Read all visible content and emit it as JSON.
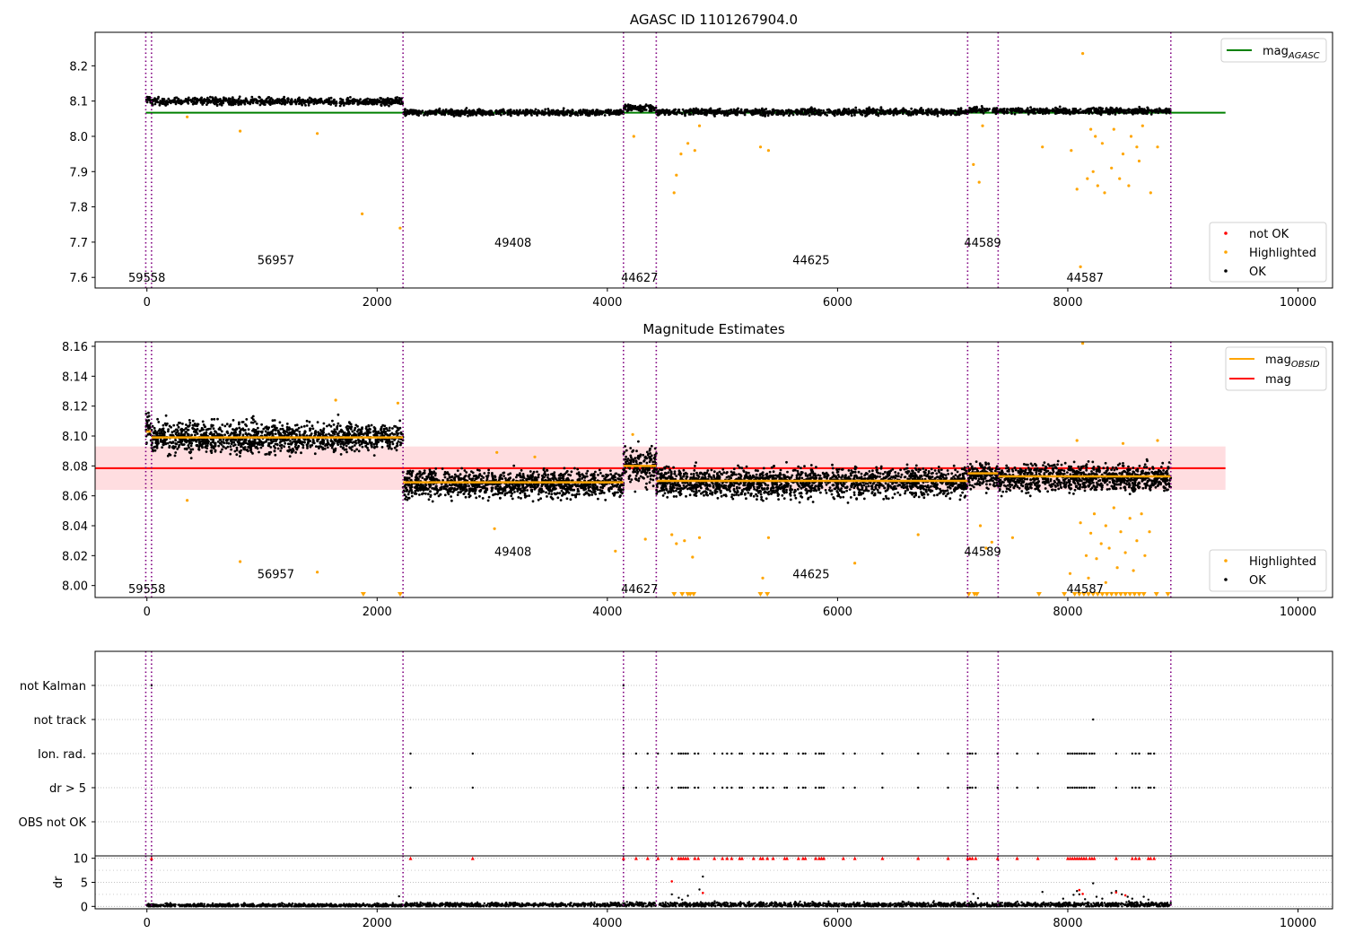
{
  "colors": {
    "ok": "#000000",
    "highlighted": "#ffa500",
    "not_ok": "#ff0000",
    "agasc_line": "#008000",
    "obsid_line": "#ffa500",
    "mag_line": "#ff0000",
    "mag_band": "#ffdde0",
    "obs_boundary": "#800080",
    "grid": "#b0b0b0"
  },
  "chart_data": [
    {
      "id": "agasc",
      "type": "scatter",
      "title": "AGASC ID 1101267904.0",
      "xlabel": "",
      "ylabel": "",
      "xlim": [
        -450,
        10300
      ],
      "ylim": [
        7.57,
        8.295
      ],
      "xticks": [
        0,
        2000,
        4000,
        6000,
        8000,
        10000
      ],
      "xtick_labels": [
        "0",
        "2000",
        "4000",
        "6000",
        "8000",
        "10000"
      ],
      "yticks": [
        7.6,
        7.7,
        7.8,
        7.9,
        8.0,
        8.1,
        8.2
      ],
      "ytick_labels": [
        "7.6",
        "7.7",
        "7.8",
        "7.9",
        "8.0",
        "8.1",
        "8.2"
      ],
      "obs_boundaries": [
        -10,
        40,
        2225,
        4140,
        4425,
        7130,
        7395,
        8895
      ],
      "obsid_labels": [
        {
          "text": "59558",
          "x": 0,
          "y": 7.6
        },
        {
          "text": "56957",
          "x": 1120,
          "y": 7.65
        },
        {
          "text": "49408",
          "x": 3180,
          "y": 7.7
        },
        {
          "text": "44627",
          "x": 4280,
          "y": 7.6
        },
        {
          "text": "44625",
          "x": 5770,
          "y": 7.65
        },
        {
          "text": "44589",
          "x": 7260,
          "y": 7.7
        },
        {
          "text": "44587",
          "x": 8150,
          "y": 7.6
        }
      ],
      "lines": [
        {
          "name": "mag_AGASC",
          "x": [
            -10,
            9370
          ],
          "y": [
            8.067,
            8.067
          ],
          "color": "#008000"
        }
      ],
      "segments": [
        {
          "x0": -10,
          "x1": 40,
          "mean": 8.105,
          "spread": 0.012,
          "dense": 1
        },
        {
          "x0": 40,
          "x1": 2225,
          "mean": 8.099,
          "spread": 0.011,
          "dense": 1
        },
        {
          "x0": 2225,
          "x1": 4140,
          "mean": 8.068,
          "spread": 0.009,
          "dense": 1
        },
        {
          "x0": 4140,
          "x1": 4425,
          "mean": 8.08,
          "spread": 0.011,
          "dense": 1
        },
        {
          "x0": 4425,
          "x1": 7130,
          "mean": 8.069,
          "spread": 0.01,
          "dense": 1
        },
        {
          "x0": 7130,
          "x1": 7395,
          "mean": 8.074,
          "spread": 0.01,
          "dense": 1
        },
        {
          "x0": 7395,
          "x1": 8895,
          "mean": 8.072,
          "spread": 0.009,
          "dense": 1
        }
      ],
      "highlighted_points": [
        [
          350,
          8.055
        ],
        [
          810,
          8.015
        ],
        [
          1480,
          8.008
        ],
        [
          1870,
          7.78
        ],
        [
          2200,
          7.74
        ],
        [
          4580,
          7.84
        ],
        [
          4600,
          7.89
        ],
        [
          4640,
          7.95
        ],
        [
          4700,
          7.98
        ],
        [
          4760,
          7.96
        ],
        [
          4800,
          8.03
        ],
        [
          5330,
          7.97
        ],
        [
          5400,
          7.96
        ],
        [
          7180,
          7.92
        ],
        [
          7230,
          7.87
        ],
        [
          7260,
          8.03
        ],
        [
          7780,
          7.97
        ],
        [
          8030,
          7.96
        ],
        [
          8080,
          7.85
        ],
        [
          8110,
          7.63
        ],
        [
          8130,
          8.235
        ],
        [
          8170,
          7.88
        ],
        [
          8220,
          7.9
        ],
        [
          8260,
          7.86
        ],
        [
          8320,
          7.84
        ],
        [
          8380,
          7.91
        ],
        [
          8450,
          7.88
        ],
        [
          8530,
          7.86
        ],
        [
          8620,
          7.93
        ],
        [
          8720,
          7.84
        ],
        [
          8780,
          7.97
        ],
        [
          4230,
          8.0
        ],
        [
          8200,
          8.02
        ],
        [
          8240,
          8.0
        ],
        [
          8300,
          7.98
        ],
        [
          8400,
          8.02
        ],
        [
          8480,
          7.95
        ],
        [
          8550,
          8.0
        ],
        [
          8600,
          7.97
        ],
        [
          8650,
          8.03
        ]
      ],
      "legend_upper": [
        {
          "label": "mag",
          "sub": "AGASC",
          "color": "#008000"
        }
      ],
      "legend_lower": [
        {
          "label": "not OK",
          "color": "#ff0000"
        },
        {
          "label": "Highlighted",
          "color": "#ffa500"
        },
        {
          "label": "OK",
          "color": "#000000"
        }
      ]
    },
    {
      "id": "estimates",
      "type": "scatter",
      "title": "Magnitude Estimates",
      "xlabel": "",
      "ylabel": "",
      "xlim": [
        -450,
        10300
      ],
      "ylim": [
        7.992,
        8.163
      ],
      "xticks": [
        0,
        2000,
        4000,
        6000,
        8000,
        10000
      ],
      "xtick_labels": [
        "0",
        "2000",
        "4000",
        "6000",
        "8000",
        "10000"
      ],
      "yticks": [
        8.0,
        8.02,
        8.04,
        8.06,
        8.08,
        8.1,
        8.12,
        8.14,
        8.16
      ],
      "ytick_labels": [
        "8.00",
        "8.02",
        "8.04",
        "8.06",
        "8.08",
        "8.10",
        "8.12",
        "8.14",
        "8.16"
      ],
      "obs_boundaries": [
        -10,
        40,
        2225,
        4140,
        4425,
        7130,
        7395,
        8895
      ],
      "obsid_labels": [
        {
          "text": "59558",
          "x": 0,
          "y": 7.998
        },
        {
          "text": "56957",
          "x": 1120,
          "y": 8.008
        },
        {
          "text": "49408",
          "x": 3180,
          "y": 8.023
        },
        {
          "text": "44627",
          "x": 4280,
          "y": 7.998
        },
        {
          "text": "44625",
          "x": 5770,
          "y": 8.008
        },
        {
          "text": "44589",
          "x": 7260,
          "y": 8.023
        },
        {
          "text": "44587",
          "x": 8150,
          "y": 7.998
        }
      ],
      "band": {
        "x0": -450,
        "x1": 9370,
        "y0": 8.064,
        "y1": 8.093
      },
      "lines": [
        {
          "name": "mag",
          "x": [
            -450,
            9370
          ],
          "y": [
            8.0785,
            8.0785
          ],
          "color": "#ff0000"
        }
      ],
      "obsid_means": [
        {
          "x0": -10,
          "x1": 40,
          "y": 8.103
        },
        {
          "x0": 40,
          "x1": 2225,
          "y": 8.099
        },
        {
          "x0": 2225,
          "x1": 4140,
          "y": 8.069
        },
        {
          "x0": 4140,
          "x1": 4425,
          "y": 8.08
        },
        {
          "x0": 4425,
          "x1": 7130,
          "y": 8.07
        },
        {
          "x0": 7130,
          "x1": 7395,
          "y": 8.075
        },
        {
          "x0": 7395,
          "x1": 8895,
          "y": 8.073
        }
      ],
      "segments": [
        {
          "x0": -10,
          "x1": 40,
          "mean": 8.105,
          "spread": 0.006
        },
        {
          "x0": 40,
          "x1": 2225,
          "mean": 8.099,
          "spread": 0.005
        },
        {
          "x0": 2225,
          "x1": 4140,
          "mean": 8.068,
          "spread": 0.0045
        },
        {
          "x0": 4140,
          "x1": 4425,
          "mean": 8.08,
          "spread": 0.006
        },
        {
          "x0": 4425,
          "x1": 7130,
          "mean": 8.069,
          "spread": 0.005
        },
        {
          "x0": 7130,
          "x1": 7395,
          "mean": 8.074,
          "spread": 0.004
        },
        {
          "x0": 7395,
          "x1": 8895,
          "mean": 8.072,
          "spread": 0.0045
        }
      ],
      "highlighted_points": [
        [
          350,
          8.057
        ],
        [
          810,
          8.016
        ],
        [
          1480,
          8.009
        ],
        [
          1640,
          8.124
        ],
        [
          2180,
          8.122
        ],
        [
          3020,
          8.038
        ],
        [
          3040,
          8.089
        ],
        [
          3370,
          8.086
        ],
        [
          4070,
          8.023
        ],
        [
          4220,
          8.101
        ],
        [
          4330,
          8.031
        ],
        [
          4560,
          8.034
        ],
        [
          4600,
          8.028
        ],
        [
          4670,
          8.03
        ],
        [
          4740,
          8.019
        ],
        [
          4800,
          8.032
        ],
        [
          5350,
          8.005
        ],
        [
          5400,
          8.032
        ],
        [
          6150,
          8.015
        ],
        [
          6700,
          8.034
        ],
        [
          7240,
          8.04
        ],
        [
          7290,
          8.025
        ],
        [
          7340,
          8.029
        ],
        [
          7520,
          8.032
        ],
        [
          8020,
          8.008
        ],
        [
          8080,
          8.097
        ],
        [
          8130,
          8.162
        ],
        [
          8110,
          8.042
        ],
        [
          8160,
          8.02
        ],
        [
          8200,
          8.035
        ],
        [
          8230,
          8.048
        ],
        [
          8250,
          8.018
        ],
        [
          8290,
          8.028
        ],
        [
          8330,
          8.04
        ],
        [
          8360,
          8.025
        ],
        [
          8400,
          8.052
        ],
        [
          8430,
          8.012
        ],
        [
          8460,
          8.036
        ],
        [
          8500,
          8.022
        ],
        [
          8540,
          8.045
        ],
        [
          8570,
          8.01
        ],
        [
          8600,
          8.03
        ],
        [
          8640,
          8.048
        ],
        [
          8670,
          8.02
        ],
        [
          8710,
          8.036
        ],
        [
          8480,
          8.095
        ],
        [
          8780,
          8.097
        ],
        [
          8180,
          8.005
        ],
        [
          8330,
          8.002
        ]
      ],
      "clipped_points_x": [
        1880,
        2200,
        4580,
        4650,
        4700,
        4720,
        4750,
        5330,
        5390,
        7140,
        7190,
        7210,
        7750,
        7970,
        8060,
        8100,
        8140,
        8180,
        8220,
        8260,
        8300,
        8340,
        8380,
        8420,
        8460,
        8500,
        8540,
        8580,
        8620,
        8660,
        8770,
        8870
      ],
      "legend_upper": [
        {
          "label": "mag",
          "sub": "OBSID",
          "color": "#ffa500"
        },
        {
          "label": "mag",
          "sub": "",
          "color": "#ff0000"
        }
      ],
      "legend_lower": [
        {
          "label": "Highlighted",
          "color": "#ffa500"
        },
        {
          "label": "OK",
          "color": "#000000"
        }
      ]
    },
    {
      "id": "flags",
      "type": "scatter",
      "title": "",
      "xlabel": "",
      "ylabel": "",
      "xlim": [
        -450,
        10300
      ],
      "categories": [
        "not Kalman",
        "not track",
        "Ion. rad.",
        "dr > 5",
        "OBS not OK"
      ],
      "obs_boundaries": [
        -10,
        40,
        2225,
        4140,
        4425,
        7130,
        7395,
        8895
      ],
      "rows": {
        "not Kalman": [
          40,
          4140
        ],
        "not track": [
          8220
        ],
        "Ion. rad.": [
          2290,
          2830,
          4140,
          4250,
          4350,
          4440,
          4560,
          4620,
          4640,
          4660,
          4680,
          4700,
          4760,
          4790,
          4930,
          5000,
          5040,
          5080,
          5150,
          5170,
          5270,
          5330,
          5350,
          5390,
          5440,
          5540,
          5560,
          5660,
          5700,
          5720,
          5810,
          5840,
          5860,
          5880,
          6050,
          6150,
          6390,
          6700,
          6960,
          7130,
          7150,
          7170,
          7200,
          7390,
          7560,
          7740,
          8000,
          8020,
          8040,
          8060,
          8080,
          8100,
          8120,
          8140,
          8160,
          8190,
          8210,
          8230,
          8420,
          8560,
          8590,
          8620,
          8700,
          8720,
          8750
        ],
        "dr > 5": [
          2290,
          2830,
          4140,
          4250,
          4350,
          4440,
          4560,
          4620,
          4640,
          4660,
          4680,
          4700,
          4760,
          4790,
          4930,
          5000,
          5040,
          5080,
          5150,
          5170,
          5270,
          5330,
          5350,
          5390,
          5440,
          5540,
          5560,
          5660,
          5700,
          5720,
          5810,
          5840,
          5860,
          5880,
          6050,
          6150,
          6390,
          6700,
          6960,
          7130,
          7150,
          7170,
          7200,
          7390,
          7560,
          7740,
          8000,
          8020,
          8040,
          8060,
          8080,
          8100,
          8120,
          8140,
          8160,
          8190,
          8210,
          8230,
          8420,
          8560,
          8590,
          8620,
          8700,
          8720,
          8750
        ],
        "OBS not OK": []
      }
    },
    {
      "id": "dr",
      "type": "scatter",
      "title": "",
      "xlabel": "",
      "ylabel": "dr",
      "xlim": [
        -450,
        10300
      ],
      "ylim": [
        -0.5,
        10.5
      ],
      "xticks": [
        0,
        2000,
        4000,
        6000,
        8000,
        10000
      ],
      "xtick_labels": [
        "0",
        "2000",
        "4000",
        "6000",
        "8000",
        "10000"
      ],
      "yticks": [
        0,
        5,
        10
      ],
      "ytick_labels": [
        "0",
        "5",
        "10"
      ],
      "obs_boundaries": [
        -10,
        40,
        2225,
        4140,
        4425,
        7130,
        7395,
        8895
      ],
      "segments": [
        {
          "x0": -10,
          "x1": 2225,
          "mean": 0.2,
          "spread": 0.18
        },
        {
          "x0": 2225,
          "x1": 4140,
          "mean": 0.35,
          "spread": 0.22
        },
        {
          "x0": 4140,
          "x1": 7130,
          "mean": 0.35,
          "spread": 0.25
        },
        {
          "x0": 7130,
          "x1": 8895,
          "mean": 0.35,
          "spread": 0.25
        }
      ],
      "scattered_points": [
        [
          4560,
          2.5
        ],
        [
          4620,
          1.8
        ],
        [
          4700,
          2.2
        ],
        [
          4800,
          3.5
        ],
        [
          4830,
          6.2
        ],
        [
          4650,
          1.4
        ],
        [
          7180,
          2.6
        ],
        [
          7220,
          1.7
        ],
        [
          7780,
          3.0
        ],
        [
          7960,
          1.6
        ],
        [
          8050,
          2.4
        ],
        [
          8080,
          3.2
        ],
        [
          8100,
          2.5
        ],
        [
          8150,
          1.5
        ],
        [
          8220,
          4.8
        ],
        [
          8250,
          2.0
        ],
        [
          8300,
          1.6
        ],
        [
          8380,
          2.8
        ],
        [
          8420,
          3.2
        ],
        [
          8470,
          2.5
        ],
        [
          8520,
          2.0
        ],
        [
          8560,
          1.6
        ],
        [
          8660,
          2.0
        ],
        [
          8700,
          1.4
        ],
        [
          1880,
          0.6
        ],
        [
          2190,
          2.1
        ]
      ],
      "red_points": [
        [
          4560,
          5.2
        ],
        [
          4830,
          2.8
        ],
        [
          8100,
          3.4
        ],
        [
          8130,
          2.6
        ],
        [
          8420,
          2.9
        ],
        [
          8500,
          2.3
        ]
      ],
      "clipped_points_x": [
        40,
        2290,
        2830,
        4140,
        4250,
        4350,
        4440,
        4560,
        4620,
        4640,
        4660,
        4680,
        4700,
        4760,
        4790,
        4930,
        5000,
        5040,
        5080,
        5150,
        5170,
        5270,
        5330,
        5350,
        5390,
        5440,
        5540,
        5560,
        5660,
        5700,
        5720,
        5810,
        5840,
        5860,
        5880,
        6050,
        6150,
        6390,
        6700,
        6960,
        7130,
        7150,
        7170,
        7200,
        7390,
        7560,
        7740,
        8000,
        8020,
        8040,
        8060,
        8080,
        8100,
        8120,
        8140,
        8160,
        8190,
        8210,
        8230,
        8420,
        8560,
        8590,
        8620,
        8700,
        8720,
        8750
      ]
    }
  ]
}
